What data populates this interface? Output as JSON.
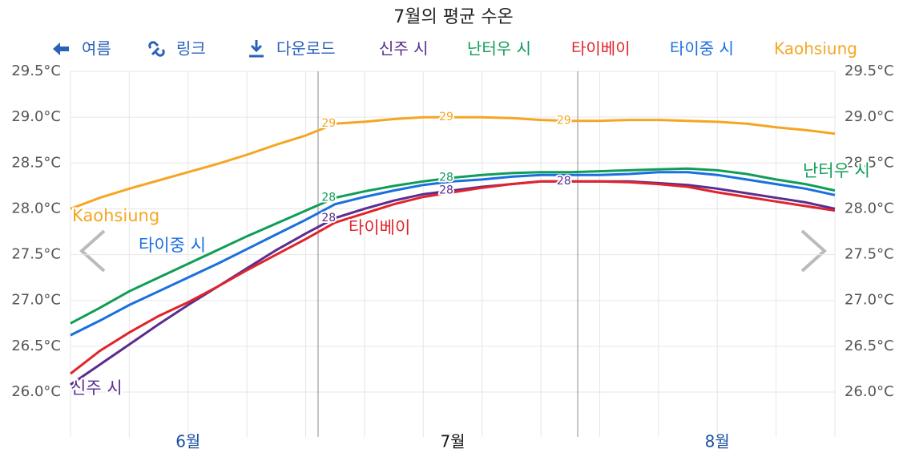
{
  "toolbar": [
    "여름",
    "링크",
    "다운로드"
  ],
  "chart_data": {
    "type": "line",
    "title": "7월의 평균 수온",
    "categories": [
      null,
      null,
      null,
      null,
      "6월",
      null,
      null,
      null,
      null,
      null,
      null,
      null,
      null,
      "7월",
      null,
      null,
      null,
      null,
      null,
      null,
      null,
      null,
      "8월",
      null,
      null,
      null,
      null
    ],
    "category_label_colors": [
      "#1a4fa0",
      "#1a4fa0",
      "#1a4fa0",
      "#1a4fa0",
      "#1a4fa0",
      "#1a4fa0",
      "#1a4fa0",
      "#1a4fa0",
      "#1a4fa0",
      "#1a4fa0",
      "#1a4fa0",
      "#1a4fa0",
      "#1a4fa0",
      "#111111",
      "#1a4fa0",
      "#1a4fa0",
      "#1a4fa0",
      "#1a4fa0",
      "#1a4fa0",
      "#1a4fa0",
      "#1a4fa0",
      "#1a4fa0",
      "#1a4fa0",
      "#1a4fa0",
      "#1a4fa0",
      "#1a4fa0",
      "#1a4fa0"
    ],
    "ylim": [
      25.6,
      29.6
    ],
    "yticks": [
      {
        "value": 26.0,
        "label": "26.0°C"
      },
      {
        "value": 26.5,
        "label": "26.5°C"
      },
      {
        "value": 27.0,
        "label": "27.0°C"
      },
      {
        "value": 27.5,
        "label": "27.5°C"
      },
      {
        "value": 28.0,
        "label": "28.0°C"
      },
      {
        "value": 28.5,
        "label": "28.5°C"
      },
      {
        "value": 29.0,
        "label": "29.0°C"
      },
      {
        "value": 29.5,
        "label": "29.5°C"
      }
    ],
    "grid": true,
    "series": [
      {
        "name": "신주 시",
        "color": "#5b2d8e",
        "values": [
          26.08,
          26.3,
          26.52,
          26.74,
          26.95,
          27.15,
          27.35,
          27.55,
          27.73,
          27.9,
          28.0,
          28.09,
          28.16,
          28.2,
          28.24,
          28.27,
          28.3,
          28.3,
          28.3,
          28.3,
          28.28,
          28.26,
          28.22,
          28.17,
          28.12,
          28.07,
          28.0
        ],
        "value_labels": [
          null,
          null,
          null,
          null,
          null,
          null,
          null,
          null,
          null,
          "28",
          null,
          null,
          null,
          "28",
          null,
          null,
          null,
          "28",
          null,
          null,
          null,
          null,
          null,
          null,
          null,
          null,
          null
        ]
      },
      {
        "name": "난터우 시",
        "color": "#0f9d58",
        "values": [
          26.75,
          26.92,
          27.1,
          27.25,
          27.4,
          27.55,
          27.7,
          27.84,
          27.98,
          28.12,
          28.19,
          28.25,
          28.3,
          28.34,
          28.37,
          28.39,
          28.4,
          28.4,
          28.41,
          28.42,
          28.43,
          28.44,
          28.42,
          28.38,
          28.32,
          28.27,
          28.2
        ],
        "value_labels": [
          null,
          null,
          null,
          null,
          null,
          null,
          null,
          null,
          null,
          "28",
          null,
          null,
          null,
          "28",
          null,
          null,
          null,
          null,
          null,
          null,
          null,
          null,
          null,
          null,
          null,
          null,
          null
        ]
      },
      {
        "name": "타이베이",
        "color": "#e0242b",
        "values": [
          26.2,
          26.45,
          26.65,
          26.83,
          26.98,
          27.15,
          27.33,
          27.5,
          27.67,
          27.85,
          27.95,
          28.05,
          28.13,
          28.18,
          28.23,
          28.27,
          28.3,
          28.3,
          28.3,
          28.29,
          28.27,
          28.24,
          28.18,
          28.13,
          28.08,
          28.03,
          27.98
        ]
      },
      {
        "name": "타이중 시",
        "color": "#1a6fe0",
        "values": [
          26.62,
          26.78,
          26.95,
          27.1,
          27.25,
          27.4,
          27.56,
          27.72,
          27.88,
          28.05,
          28.13,
          28.2,
          28.26,
          28.3,
          28.32,
          28.35,
          28.37,
          28.37,
          28.37,
          28.38,
          28.4,
          28.4,
          28.37,
          28.32,
          28.27,
          28.22,
          28.15
        ]
      },
      {
        "name": "Kaohsiung",
        "color": "#f4a623",
        "values": [
          28.0,
          28.12,
          28.22,
          28.31,
          28.4,
          28.49,
          28.59,
          28.7,
          28.8,
          28.93,
          28.95,
          28.98,
          29.0,
          29.0,
          29.0,
          28.99,
          28.97,
          28.96,
          28.96,
          28.97,
          28.97,
          28.96,
          28.95,
          28.93,
          28.89,
          28.86,
          28.82
        ],
        "value_labels": [
          null,
          null,
          null,
          null,
          null,
          null,
          null,
          null,
          null,
          "29",
          null,
          null,
          null,
          "29",
          null,
          null,
          null,
          "29",
          null,
          null,
          null,
          null,
          null,
          null,
          null,
          null,
          null
        ]
      }
    ]
  }
}
